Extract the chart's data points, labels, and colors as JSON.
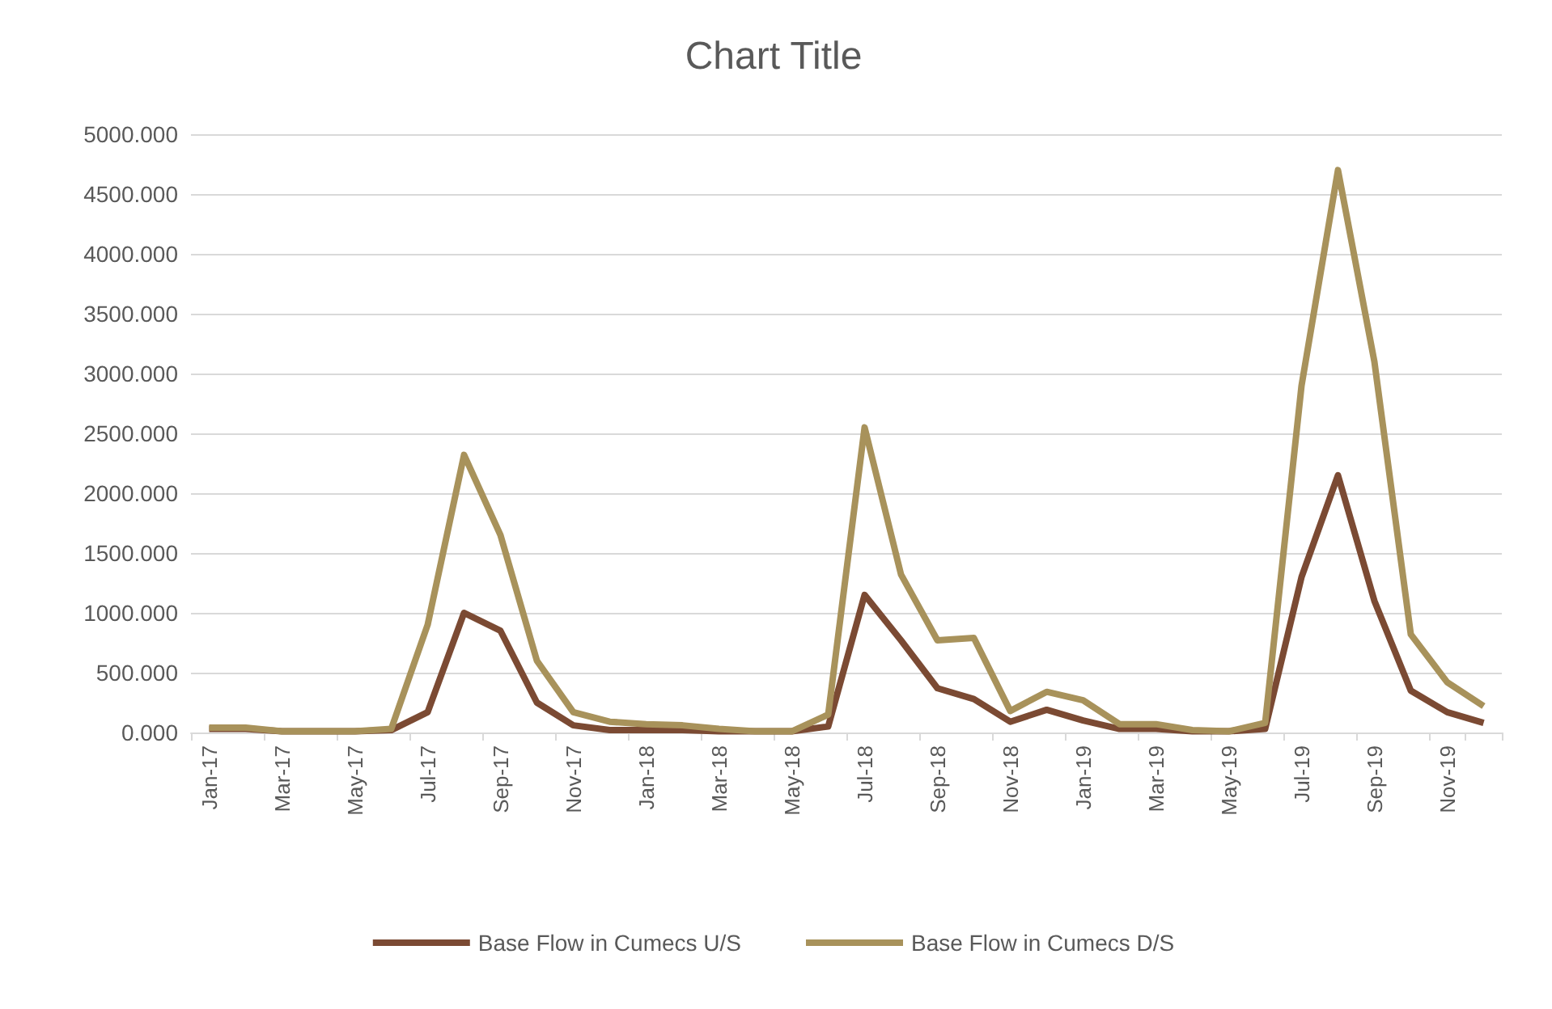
{
  "chart_data": {
    "type": "line",
    "title": "Chart Title",
    "categories": [
      "Jan-17",
      null,
      "Mar-17",
      null,
      "May-17",
      null,
      "Jul-17",
      null,
      "Sep-17",
      null,
      "Nov-17",
      null,
      "Jan-18",
      null,
      "Mar-18",
      null,
      "May-18",
      null,
      "Jul-18",
      null,
      "Sep-18",
      null,
      "Nov-18",
      null,
      "Jan-19",
      null,
      "Mar-19",
      null,
      "May-19",
      null,
      "Jul-19",
      null,
      "Sep-19",
      null,
      "Nov-19",
      null
    ],
    "series": [
      {
        "name": "Base Flow in Cumecs U/S",
        "color": "#7b4a33",
        "values": [
          30,
          30,
          10,
          10,
          10,
          20,
          170,
          1000,
          850,
          250,
          60,
          20,
          20,
          20,
          10,
          10,
          10,
          50,
          1150,
          770,
          370,
          280,
          90,
          190,
          100,
          30,
          30,
          10,
          10,
          30,
          1300,
          2150,
          1100,
          350,
          170,
          80
        ]
      },
      {
        "name": "Base Flow in Cumecs D/S",
        "color": "#a8925b",
        "values": [
          40,
          40,
          10,
          10,
          10,
          30,
          900,
          2320,
          1650,
          600,
          170,
          90,
          70,
          60,
          30,
          10,
          10,
          150,
          2550,
          1320,
          770,
          790,
          180,
          340,
          270,
          70,
          70,
          20,
          10,
          80,
          2900,
          4700,
          3100,
          820,
          420,
          220
        ]
      }
    ],
    "ylim": [
      0,
      5000
    ],
    "yticks": [
      {
        "value": 0,
        "label": "0.000"
      },
      {
        "value": 500,
        "label": "500.000"
      },
      {
        "value": 1000,
        "label": "1000.000"
      },
      {
        "value": 1500,
        "label": "1500.000"
      },
      {
        "value": 2000,
        "label": "2000.000"
      },
      {
        "value": 2500,
        "label": "2500.000"
      },
      {
        "value": 3000,
        "label": "3000.000"
      },
      {
        "value": 3500,
        "label": "3500.000"
      },
      {
        "value": 4000,
        "label": "4000.000"
      },
      {
        "value": 4500,
        "label": "4500.000"
      },
      {
        "value": 5000,
        "label": "5000.000"
      }
    ],
    "grid": "y",
    "legend": "bottom",
    "marker": "none",
    "line_style": "solid"
  }
}
